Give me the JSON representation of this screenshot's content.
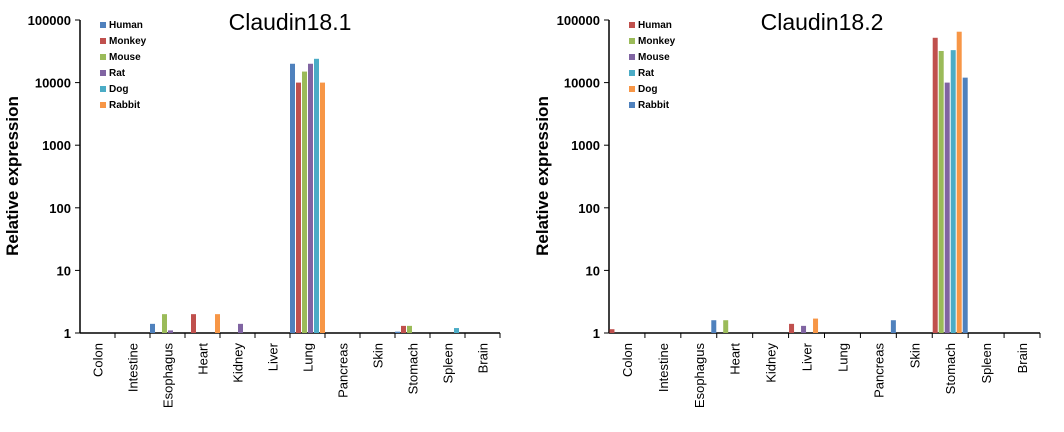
{
  "chart_data": [
    {
      "type": "bar",
      "title": "Claudin18.1",
      "ylabel": "Relative expression",
      "xlabel": "",
      "yscale": "log",
      "ylim": [
        1,
        100000
      ],
      "yticks": [
        "1",
        "10",
        "100",
        "1000",
        "10000",
        "100000"
      ],
      "categories": [
        "Colon",
        "Intestine",
        "Esophagus",
        "Heart",
        "Kidney",
        "Liver",
        "Lung",
        "Pancreas",
        "Skin",
        "Stomach",
        "Spleen",
        "Brain"
      ],
      "legend_position": "top-left",
      "series": [
        {
          "name": "Human",
          "color": "#4f81bd",
          "values": [
            1,
            1,
            1.4,
            1,
            1,
            1,
            20000,
            1,
            1,
            1.05,
            1,
            1
          ]
        },
        {
          "name": "Monkey",
          "color": "#c0504d",
          "values": [
            1,
            1,
            1,
            2,
            1,
            1,
            10000,
            1,
            1,
            1.3,
            1,
            1
          ]
        },
        {
          "name": "Mouse",
          "color": "#9bbb59",
          "values": [
            1,
            1,
            2,
            1,
            1,
            1,
            15000,
            1,
            1,
            1.3,
            1,
            1
          ]
        },
        {
          "name": "Rat",
          "color": "#8064a2",
          "values": [
            1,
            1,
            1.1,
            1,
            1.4,
            1,
            20000,
            1,
            1,
            1,
            1,
            1
          ]
        },
        {
          "name": "Dog",
          "color": "#4bacc6",
          "values": [
            1,
            1,
            1,
            1,
            1,
            1,
            24000,
            1,
            1,
            1,
            1.2,
            1
          ]
        },
        {
          "name": "Rabbit",
          "color": "#f79646",
          "values": [
            1,
            1,
            1,
            2,
            1,
            1,
            10000,
            1,
            1,
            1,
            1,
            1
          ]
        }
      ]
    },
    {
      "type": "bar",
      "title": "Claudin18.2",
      "ylabel": "Relative expression",
      "xlabel": "",
      "yscale": "log",
      "ylim": [
        1,
        100000
      ],
      "yticks": [
        "1",
        "10",
        "100",
        "1000",
        "10000",
        "100000"
      ],
      "categories": [
        "Colon",
        "Intestine",
        "Esophagus",
        "Heart",
        "Kidney",
        "Liver",
        "Lung",
        "Pancreas",
        "Skin",
        "Stomach",
        "Spleen",
        "Brain"
      ],
      "legend_position": "top-left",
      "series": [
        {
          "name": "Human",
          "color": "#c0504d",
          "values": [
            1.15,
            1,
            1,
            1,
            1,
            1.4,
            1,
            1,
            1,
            52000,
            1,
            1
          ]
        },
        {
          "name": "Monkey",
          "color": "#9bbb59",
          "values": [
            1,
            1,
            1,
            1.6,
            1,
            1,
            1,
            1,
            1,
            32000,
            1,
            1
          ]
        },
        {
          "name": "Mouse",
          "color": "#8064a2",
          "values": [
            1,
            1,
            1,
            1,
            1,
            1.3,
            1,
            1,
            1,
            10000,
            1,
            1
          ]
        },
        {
          "name": "Rat",
          "color": "#4bacc6",
          "values": [
            1,
            1,
            1,
            1,
            1,
            1,
            1,
            1,
            1,
            33000,
            1,
            1
          ]
        },
        {
          "name": "Dog",
          "color": "#f79646",
          "values": [
            1,
            1,
            1,
            1,
            1,
            1.7,
            1,
            1,
            1,
            65000,
            1,
            1
          ]
        },
        {
          "name": "Rabbit",
          "color": "#4f81bd",
          "values": [
            1,
            1,
            1.6,
            1,
            1,
            1,
            1,
            1.6,
            1,
            12000,
            1,
            1
          ]
        }
      ]
    }
  ]
}
